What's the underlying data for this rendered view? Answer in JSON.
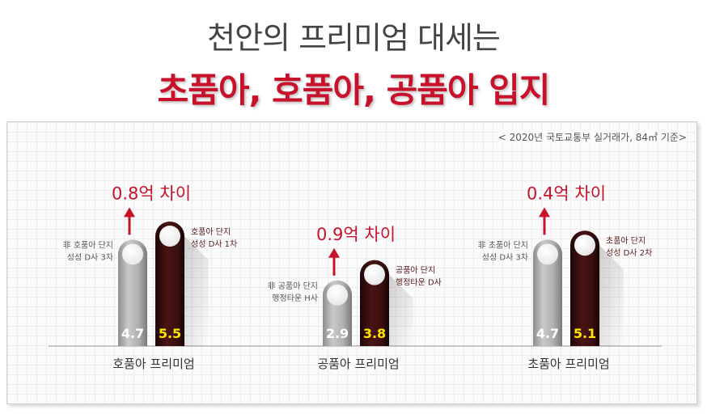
{
  "headline": {
    "line1": "천안의 프리미엄 대세는",
    "line2": "초품아, 호품아, 공품아 입지"
  },
  "source_note": "< 2020년 국토교통부 실거래가, 84㎡ 기준>",
  "colors": {
    "accent": "#c8112a",
    "gray_bar": "#a9a9a9",
    "dark_bar": "#3a0f0f",
    "dark_value": "#ffe600"
  },
  "chart_data": {
    "type": "bar",
    "unit": "억",
    "groups": [
      {
        "category": "호품아 프리미엄",
        "difference": "0.8억 차이",
        "gray": {
          "label": [
            "非 호품아 단지",
            "성성 D사 3차"
          ],
          "value": 4.7
        },
        "dark": {
          "label": [
            "호품아 단지",
            "성성 D사 1차"
          ],
          "value": 5.5
        }
      },
      {
        "category": "공품아 프리미엄",
        "difference": "0.9억 차이",
        "gray": {
          "label": [
            "非 공품아 단지",
            "행정타운 H사"
          ],
          "value": 2.9
        },
        "dark": {
          "label": [
            "공품아 단지",
            "행정타운 D사"
          ],
          "value": 3.8
        }
      },
      {
        "category": "초품아 프리미엄",
        "difference": "0.4억 차이",
        "gray": {
          "label": [
            "非 초품아 단지",
            "성성 D사 3차"
          ],
          "value": 4.7
        },
        "dark": {
          "label": [
            "초품아 단지",
            "성성 D사 2차"
          ],
          "value": 5.1
        }
      }
    ]
  }
}
